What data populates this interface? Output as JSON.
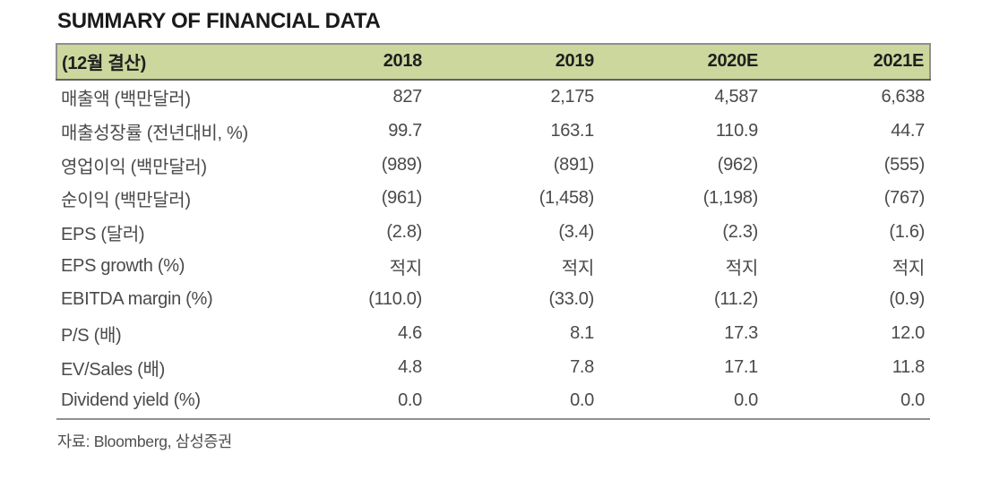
{
  "title": "SUMMARY OF FINANCIAL DATA",
  "table": {
    "header": {
      "label": "(12월 결산)",
      "columns": [
        "2018",
        "2019",
        "2020E",
        "2021E"
      ]
    },
    "rows": [
      {
        "label": "매출액 (백만달러)",
        "values": [
          "827",
          "2,175",
          "4,587",
          "6,638"
        ]
      },
      {
        "label": "매출성장률 (전년대비, %)",
        "values": [
          "99.7",
          "163.1",
          "110.9",
          "44.7"
        ]
      },
      {
        "label": "영업이익 (백만달러)",
        "values": [
          "(989)",
          "(891)",
          "(962)",
          "(555)"
        ]
      },
      {
        "label": "순이익 (백만달러)",
        "values": [
          "(961)",
          "(1,458)",
          "(1,198)",
          "(767)"
        ]
      },
      {
        "label": "EPS (달러)",
        "values": [
          "(2.8)",
          "(3.4)",
          "(2.3)",
          "(1.6)"
        ]
      },
      {
        "label": "EPS growth (%)",
        "values": [
          "적지",
          "적지",
          "적지",
          "적지"
        ]
      },
      {
        "label": "EBITDA margin (%)",
        "values": [
          "(110.0)",
          "(33.0)",
          "(11.2)",
          "(0.9)"
        ]
      },
      {
        "label": "P/S (배)",
        "values": [
          "4.6",
          "8.1",
          "17.3",
          "12.0"
        ]
      },
      {
        "label": "EV/Sales (배)",
        "values": [
          "4.8",
          "7.8",
          "17.1",
          "11.8"
        ]
      },
      {
        "label": "Dividend yield (%)",
        "values": [
          "0.0",
          "0.0",
          "0.0",
          "0.0"
        ]
      }
    ],
    "source": "자료: Bloomberg, 삼성증권"
  },
  "colors": {
    "header_bg": "#ccd79d",
    "border_gray": "#8f8f8f",
    "header_bottom": "#606060",
    "title_text": "#1a1a1a",
    "body_text": "#4a4a4a",
    "footer_text": "#4f4f4f"
  }
}
